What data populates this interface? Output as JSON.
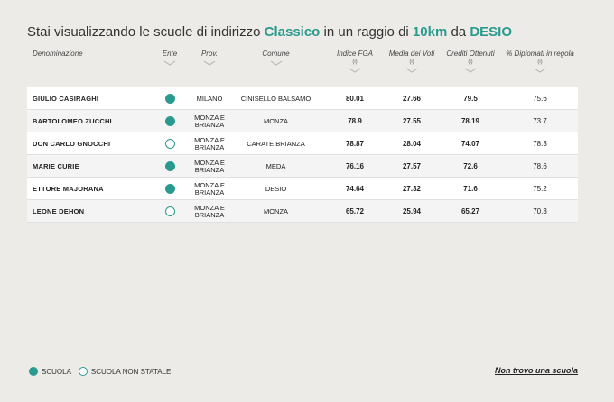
{
  "title": {
    "prefix": "Stai visualizzando le scuole di indirizzo ",
    "indirizzo": "Classico",
    "middle": " in un raggio di ",
    "raggio": "10km",
    "da": " da ",
    "city": "DESIO"
  },
  "columns": {
    "denominazione": "Denominazione",
    "ente": "Ente",
    "prov": "Prov.",
    "comune": "Comune",
    "indice": "Indice FGA",
    "media": "Media dei Voti",
    "crediti": "Crediti Ottenuti",
    "diplomati": "% Diplomati in regola",
    "info_marker": "(i)"
  },
  "rows": [
    {
      "name": "GIULIO CASIRAGHI",
      "ente": "statale",
      "prov": "MILANO",
      "comune": "CINISELLO BALSAMO",
      "indice": "80.01",
      "media": "27.66",
      "crediti": "79.5",
      "diplomati": "75.6"
    },
    {
      "name": "BARTOLOMEO ZUCCHI",
      "ente": "statale",
      "prov": "MONZA E BRIANZA",
      "comune": "MONZA",
      "indice": "78.9",
      "media": "27.55",
      "crediti": "78.19",
      "diplomati": "73.7"
    },
    {
      "name": "DON CARLO GNOCCHI",
      "ente": "non-statale",
      "prov": "MONZA E BRIANZA",
      "comune": "CARATE BRIANZA",
      "indice": "78.87",
      "media": "28.04",
      "crediti": "74.07",
      "diplomati": "78.3"
    },
    {
      "name": "MARIE CURIE",
      "ente": "statale",
      "prov": "MONZA E BRIANZA",
      "comune": "MEDA",
      "indice": "76.16",
      "media": "27.57",
      "crediti": "72.6",
      "diplomati": "78.6"
    },
    {
      "name": "ETTORE MAJORANA",
      "ente": "statale",
      "prov": "MONZA E BRIANZA",
      "comune": "DESIO",
      "indice": "74.64",
      "media": "27.32",
      "crediti": "71.6",
      "diplomati": "75.2"
    },
    {
      "name": "LEONE DEHON",
      "ente": "non-statale",
      "prov": "MONZA E BRIANZA",
      "comune": "MONZA",
      "indice": "65.72",
      "media": "25.94",
      "crediti": "65.27",
      "diplomati": "70.3"
    }
  ],
  "legend": {
    "statale": "SCUOLA",
    "non_statale": "SCUOLA NON STATALE"
  },
  "not_found_link": "Non trovo una scuola",
  "colors": {
    "accent": "#2a9a8e",
    "background": "#ecebe8"
  },
  "icons": {
    "sort": "chevron-down-icon",
    "ente_statale": "filled-circle-icon",
    "ente_non_statale": "hollow-circle-icon"
  }
}
